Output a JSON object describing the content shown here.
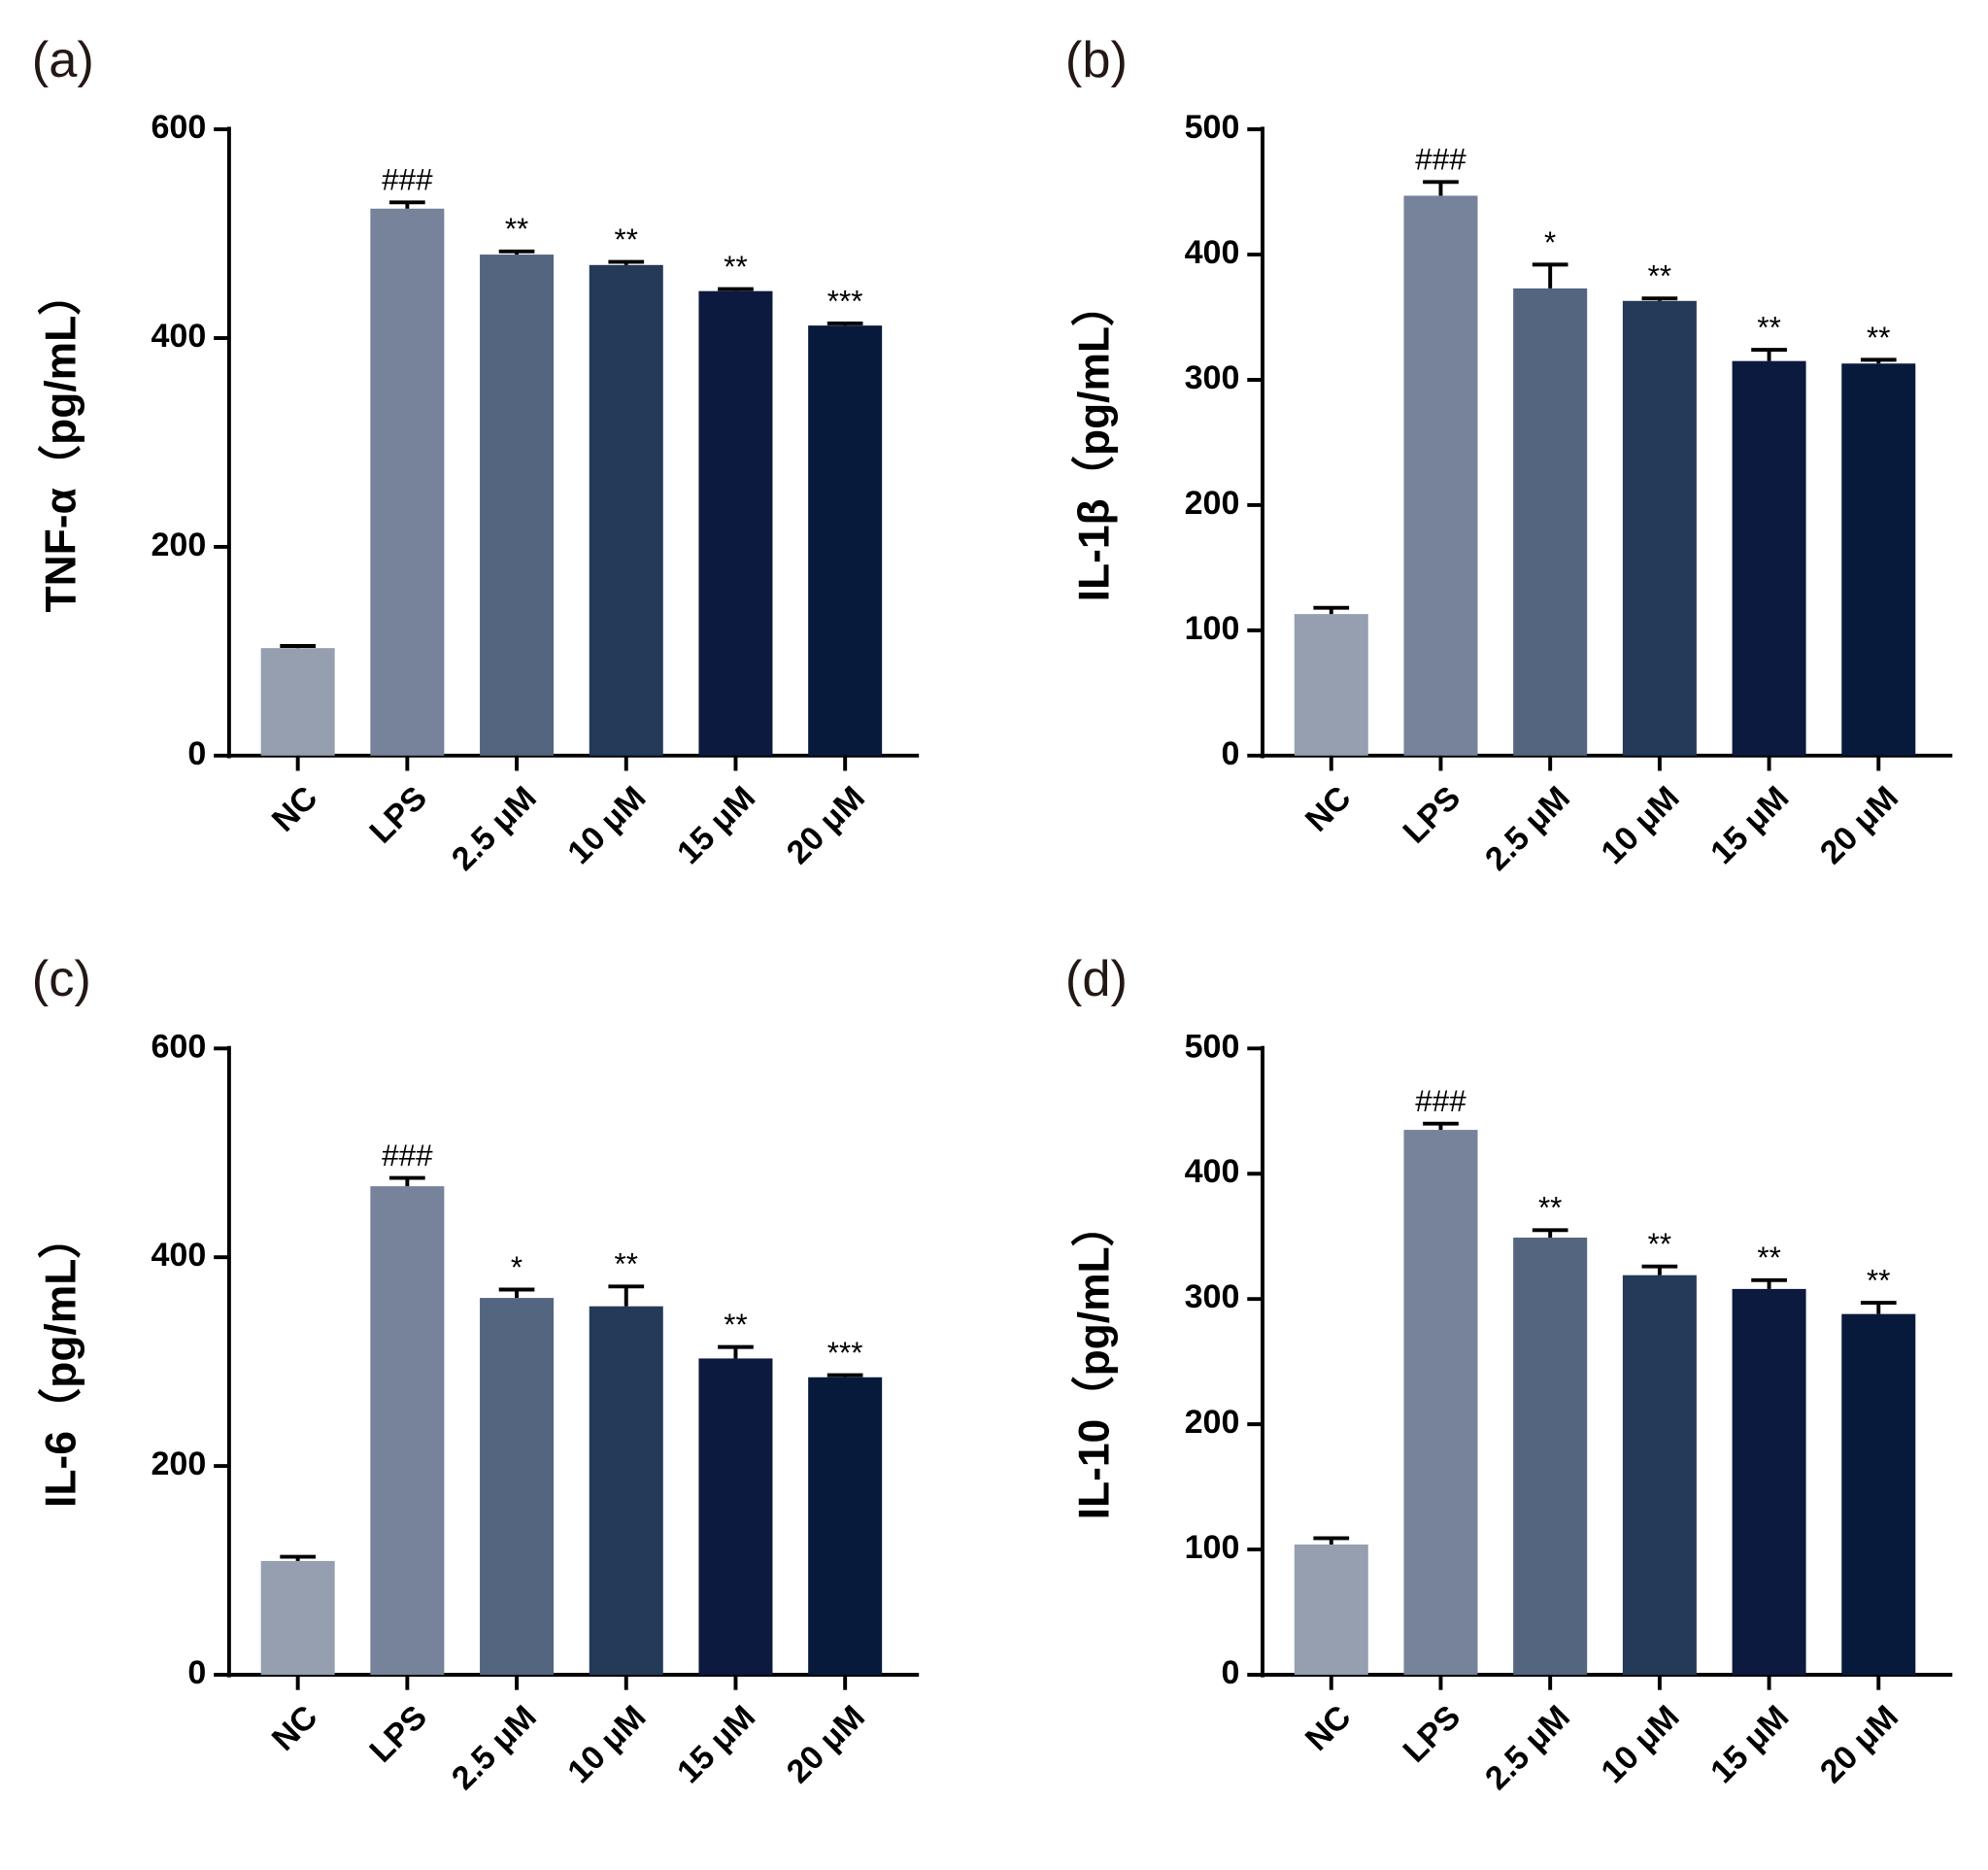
{
  "chart_data": [
    {
      "type": "bar",
      "panel_label": "(a)",
      "ylabel": "TNF-α（pg/mL）",
      "categories": [
        "NC",
        "LPS",
        "2.5 μM",
        "10 μM",
        "15 μM",
        "20 μM"
      ],
      "values": [
        103,
        524,
        480,
        470,
        445,
        412
      ],
      "errors": [
        2,
        6,
        3,
        3,
        2,
        2
      ],
      "annotations": [
        null,
        "###",
        "**",
        "**",
        "**",
        "***"
      ],
      "colors": [
        "#959fb0",
        "#77839a",
        "#53657f",
        "#233a58",
        "#0b1a3e",
        "#071a3c"
      ],
      "ylim": [
        0,
        600
      ],
      "yticks": [
        0,
        200,
        400,
        600
      ]
    },
    {
      "type": "bar",
      "panel_label": "(b)",
      "ylabel": "IL-1β（pg/mL）",
      "categories": [
        "NC",
        "LPS",
        "2.5 μM",
        "10 μM",
        "15 μM",
        "20 μM"
      ],
      "values": [
        113,
        447,
        373,
        363,
        315,
        313
      ],
      "errors": [
        5,
        11,
        19,
        2,
        9,
        3
      ],
      "annotations": [
        null,
        "###",
        "*",
        "**",
        "**",
        "**"
      ],
      "colors": [
        "#959fb0",
        "#77839a",
        "#53657f",
        "#233a58",
        "#0b1a3e",
        "#071a3c"
      ],
      "ylim": [
        0,
        500
      ],
      "yticks": [
        0,
        100,
        200,
        300,
        400,
        500
      ]
    },
    {
      "type": "bar",
      "panel_label": "(c)",
      "ylabel": "IL-6（pg/mL）",
      "categories": [
        "NC",
        "LPS",
        "2.5 μM",
        "10 μM",
        "15 μM",
        "20 μM"
      ],
      "values": [
        109,
        468,
        361,
        353,
        303,
        285
      ],
      "errors": [
        4,
        8,
        8,
        19,
        11,
        2
      ],
      "annotations": [
        null,
        "###",
        "*",
        "**",
        "**",
        "***"
      ],
      "colors": [
        "#959fb0",
        "#77839a",
        "#53657f",
        "#233a58",
        "#0b1a3e",
        "#071a3c"
      ],
      "ylim": [
        0,
        600
      ],
      "yticks": [
        0,
        200,
        400,
        600
      ]
    },
    {
      "type": "bar",
      "panel_label": "(d)",
      "ylabel": "IL-10（pg/mL）",
      "categories": [
        "NC",
        "LPS",
        "2.5 μM",
        "10 μM",
        "15 μM",
        "20 μM"
      ],
      "values": [
        104,
        435,
        349,
        319,
        308,
        288
      ],
      "errors": [
        5,
        5,
        6,
        7,
        7,
        9
      ],
      "annotations": [
        null,
        "###",
        "**",
        "**",
        "**",
        "**"
      ],
      "colors": [
        "#959fb0",
        "#77839a",
        "#53657f",
        "#233a58",
        "#0b1a3e",
        "#071a3c"
      ],
      "ylim": [
        0,
        500
      ],
      "yticks": [
        0,
        100,
        200,
        300,
        400,
        500
      ]
    }
  ]
}
